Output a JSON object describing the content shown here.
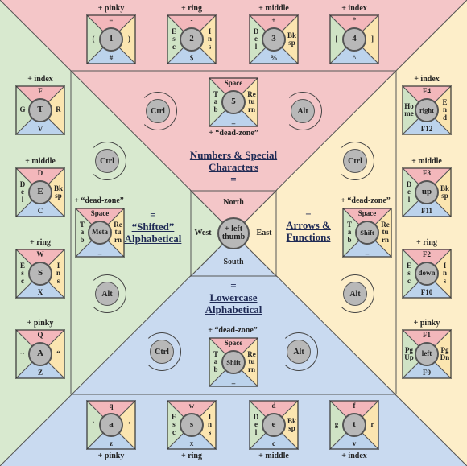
{
  "colors": {
    "red": "#f4c6c8",
    "green": "#d8e9cf",
    "blue": "#c9daf0",
    "yellow": "#fdeec9",
    "key_red": "#f3b7bb",
    "key_green": "#cfe3c5",
    "key_blue": "#bcd3ec",
    "key_yellow": "#fbe5b0",
    "circle": "#b8b8b8"
  },
  "titles": {
    "top_line1": "Numbers & Special",
    "top_line2": "Characters",
    "top_eq": "=",
    "left_eq": "=",
    "left_line1": "“Shifted”",
    "left_line2": "Alphabetical",
    "right_eq": "=",
    "right_line1": "Arrows &",
    "right_line2": "Functions",
    "bottom_eq": "=",
    "bottom_line1": "Lowercase",
    "bottom_line2": "Alphabetical"
  },
  "compass": {
    "north": "North",
    "south": "South",
    "west": "West",
    "east": "East",
    "center": "+ left thumb"
  },
  "thumb_buttons": {
    "ctrl": "Ctrl",
    "alt": "Alt"
  },
  "thumb_labels": {
    "top": "+ “dead-zone”",
    "left": "+ “dead-zone”",
    "right": "+ “dead-zone”",
    "bottom": "+ “dead-zone”"
  },
  "keys": {
    "top_pinky": {
      "label": "+ pinky",
      "center": "1",
      "n": "=",
      "s": "#",
      "w": "(",
      "e": ")"
    },
    "top_ring": {
      "label": "+ ring",
      "center": "2",
      "n": "-",
      "s": "$",
      "w": "E s c",
      "e": "I n s"
    },
    "top_middle": {
      "label": "+ middle",
      "center": "3",
      "n": "+",
      "s": "%",
      "w": "D e l",
      "e": "Bk sp"
    },
    "top_index": {
      "label": "+ index",
      "center": "4",
      "n": "*",
      "s": "^",
      "w": "[",
      "e": "]"
    },
    "top_thumb": {
      "center": "5",
      "n": "Space",
      "s": "_",
      "w": "T a b",
      "e": "Re tu rn"
    },
    "left_index": {
      "label": "+ index",
      "center": "T",
      "n": "F",
      "s": "V",
      "w": "G",
      "e": "R"
    },
    "left_middle": {
      "label": "+ middle",
      "center": "E",
      "n": "D",
      "s": "C",
      "w": "D e l",
      "e": "Bk sp"
    },
    "left_ring": {
      "label": "+ ring",
      "center": "S",
      "n": "W",
      "s": "X",
      "w": "E s c",
      "e": "I n s"
    },
    "left_pinky": {
      "label": "+ pinky",
      "center": "A",
      "n": "Q",
      "s": "Z",
      "w": "~",
      "e": "“"
    },
    "left_thumb": {
      "center": "Meta",
      "n": "Space",
      "s": "_",
      "w": "T a b",
      "e": "Re tu rn"
    },
    "right_index": {
      "label": "+ index",
      "center": "right",
      "n": "F4",
      "s": "F12",
      "w": "Ho me",
      "e": "E n d"
    },
    "right_middle": {
      "label": "+ middle",
      "center": "up",
      "n": "F3",
      "s": "F11",
      "w": "D e l",
      "e": "Bk sp"
    },
    "right_ring": {
      "label": "+ ring",
      "center": "down",
      "n": "F2",
      "s": "F10",
      "w": "E s c",
      "e": "I n s"
    },
    "right_pinky": {
      "label": "+ pinky",
      "center": "left",
      "n": "F1",
      "s": "F9",
      "w": "Pg Up",
      "e": "Pg Dn"
    },
    "right_thumb": {
      "center": "Shift",
      "n": "Space",
      "s": "_",
      "w": "T a b",
      "e": "Re tu rn"
    },
    "bottom_pinky": {
      "label": "+ pinky",
      "center": "a",
      "n": "q",
      "s": "z",
      "w": "`",
      "e": "‘"
    },
    "bottom_ring": {
      "label": "+ ring",
      "center": "s",
      "n": "w",
      "s": "x",
      "w": "E s c",
      "e": "I n s"
    },
    "bottom_middle": {
      "label": "+ middle",
      "center": "e",
      "n": "d",
      "s": "c",
      "w": "D e l",
      "e": "Bk sp"
    },
    "bottom_index": {
      "label": "+ index",
      "center": "t",
      "n": "f",
      "s": "v",
      "w": "g",
      "e": "r"
    },
    "bottom_thumb": {
      "center": "Shift",
      "n": "Space",
      "s": "_",
      "w": "T a b",
      "e": "Re tu rn"
    }
  }
}
